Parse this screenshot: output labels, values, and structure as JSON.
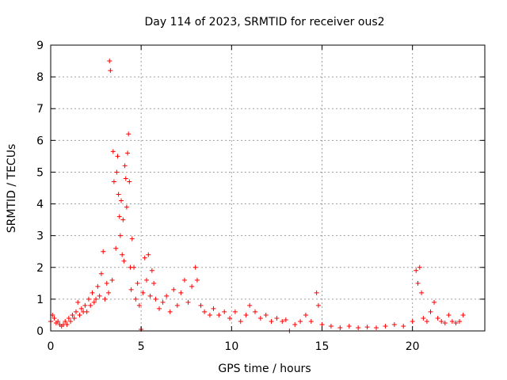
{
  "chart_data": {
    "type": "scatter",
    "title": "Day 114 of 2023, SRMTID for receiver ous2",
    "xlabel": "GPS time / hours",
    "ylabel": "SRMTID / TECUs",
    "xlim": [
      0,
      24
    ],
    "ylim": [
      0,
      9
    ],
    "xticks": [
      "0",
      "5",
      "10",
      "15",
      "20"
    ],
    "xtick_values": [
      0,
      5,
      10,
      15,
      20
    ],
    "yticks": [
      "0",
      "1",
      "2",
      "3",
      "4",
      "5",
      "6",
      "7",
      "8",
      "9"
    ],
    "ytick_values": [
      0,
      1,
      2,
      3,
      4,
      5,
      6,
      7,
      8,
      9
    ],
    "grid": true,
    "marker": "+",
    "color": "#ff0000",
    "series": [
      {
        "name": "SRMTID",
        "points": [
          [
            0.0,
            0.3
          ],
          [
            0.1,
            0.5
          ],
          [
            0.2,
            0.4
          ],
          [
            0.3,
            0.25
          ],
          [
            0.4,
            0.3
          ],
          [
            0.5,
            0.2
          ],
          [
            0.6,
            0.15
          ],
          [
            0.7,
            0.2
          ],
          [
            0.8,
            0.3
          ],
          [
            0.9,
            0.2
          ],
          [
            1.0,
            0.4
          ],
          [
            1.1,
            0.3
          ],
          [
            1.2,
            0.5
          ],
          [
            1.3,
            0.4
          ],
          [
            1.4,
            0.6
          ],
          [
            1.5,
            0.9
          ],
          [
            1.6,
            0.5
          ],
          [
            1.7,
            0.7
          ],
          [
            1.8,
            0.6
          ],
          [
            1.9,
            0.8
          ],
          [
            2.0,
            0.6
          ],
          [
            2.1,
            1.0
          ],
          [
            2.2,
            0.8
          ],
          [
            2.3,
            1.2
          ],
          [
            2.4,
            0.9
          ],
          [
            2.5,
            1.0
          ],
          [
            2.6,
            1.4
          ],
          [
            2.7,
            1.1
          ],
          [
            2.8,
            1.8
          ],
          [
            2.9,
            2.5
          ],
          [
            3.0,
            1.0
          ],
          [
            3.1,
            1.5
          ],
          [
            3.2,
            1.2
          ],
          [
            3.25,
            8.5
          ],
          [
            3.3,
            8.2
          ],
          [
            3.4,
            1.6
          ],
          [
            3.45,
            5.65
          ],
          [
            3.5,
            4.7
          ],
          [
            3.6,
            2.6
          ],
          [
            3.65,
            5.0
          ],
          [
            3.7,
            5.5
          ],
          [
            3.75,
            4.3
          ],
          [
            3.8,
            3.6
          ],
          [
            3.85,
            3.0
          ],
          [
            3.9,
            4.1
          ],
          [
            3.95,
            2.4
          ],
          [
            4.0,
            3.5
          ],
          [
            4.05,
            2.2
          ],
          [
            4.1,
            5.2
          ],
          [
            4.15,
            4.8
          ],
          [
            4.2,
            3.9
          ],
          [
            4.25,
            5.6
          ],
          [
            4.3,
            6.2
          ],
          [
            4.35,
            4.7
          ],
          [
            4.4,
            2.0
          ],
          [
            4.45,
            1.3
          ],
          [
            4.5,
            2.9
          ],
          [
            4.6,
            2.0
          ],
          [
            4.7,
            1.0
          ],
          [
            4.8,
            1.5
          ],
          [
            4.9,
            0.8
          ],
          [
            5.0,
            0.05
          ],
          [
            5.1,
            1.2
          ],
          [
            5.2,
            2.3
          ],
          [
            5.3,
            1.6
          ],
          [
            5.4,
            2.4
          ],
          [
            5.5,
            1.1
          ],
          [
            5.6,
            1.9
          ],
          [
            5.7,
            1.5
          ],
          [
            5.8,
            1.0
          ],
          [
            6.0,
            0.7
          ],
          [
            6.2,
            0.9
          ],
          [
            6.4,
            1.1
          ],
          [
            6.6,
            0.6
          ],
          [
            6.8,
            1.3
          ],
          [
            7.0,
            0.8
          ],
          [
            7.2,
            1.2
          ],
          [
            7.4,
            1.6
          ],
          [
            7.6,
            0.9
          ],
          [
            7.8,
            1.4
          ],
          [
            8.0,
            2.0
          ],
          [
            8.1,
            1.6
          ],
          [
            8.3,
            0.8
          ],
          [
            8.5,
            0.6
          ],
          [
            8.8,
            0.5
          ],
          [
            9.0,
            0.7
          ],
          [
            9.3,
            0.5
          ],
          [
            9.6,
            0.6
          ],
          [
            9.9,
            0.4
          ],
          [
            10.2,
            0.6
          ],
          [
            10.5,
            0.3
          ],
          [
            10.8,
            0.5
          ],
          [
            11.0,
            0.8
          ],
          [
            11.3,
            0.6
          ],
          [
            11.6,
            0.4
          ],
          [
            11.9,
            0.5
          ],
          [
            12.2,
            0.3
          ],
          [
            12.5,
            0.4
          ],
          [
            12.8,
            0.3
          ],
          [
            13.0,
            0.35
          ],
          [
            13.2,
            0.0
          ],
          [
            13.5,
            0.2
          ],
          [
            13.8,
            0.3
          ],
          [
            14.1,
            0.5
          ],
          [
            14.4,
            0.3
          ],
          [
            14.7,
            1.2
          ],
          [
            14.8,
            0.8
          ],
          [
            15.0,
            0.2
          ],
          [
            15.5,
            0.15
          ],
          [
            16.0,
            0.1
          ],
          [
            16.5,
            0.15
          ],
          [
            17.0,
            0.1
          ],
          [
            17.5,
            0.12
          ],
          [
            18.0,
            0.1
          ],
          [
            18.5,
            0.15
          ],
          [
            19.0,
            0.2
          ],
          [
            19.5,
            0.15
          ],
          [
            20.0,
            0.3
          ],
          [
            20.2,
            1.9
          ],
          [
            20.3,
            1.5
          ],
          [
            20.4,
            2.0
          ],
          [
            20.5,
            1.2
          ],
          [
            20.6,
            0.4
          ],
          [
            20.8,
            0.3
          ],
          [
            21.0,
            0.6
          ],
          [
            21.2,
            0.9
          ],
          [
            21.4,
            0.4
          ],
          [
            21.6,
            0.3
          ],
          [
            21.8,
            0.25
          ],
          [
            22.0,
            0.5
          ],
          [
            22.2,
            0.3
          ],
          [
            22.4,
            0.25
          ],
          [
            22.6,
            0.3
          ],
          [
            22.8,
            0.5
          ]
        ]
      }
    ]
  }
}
